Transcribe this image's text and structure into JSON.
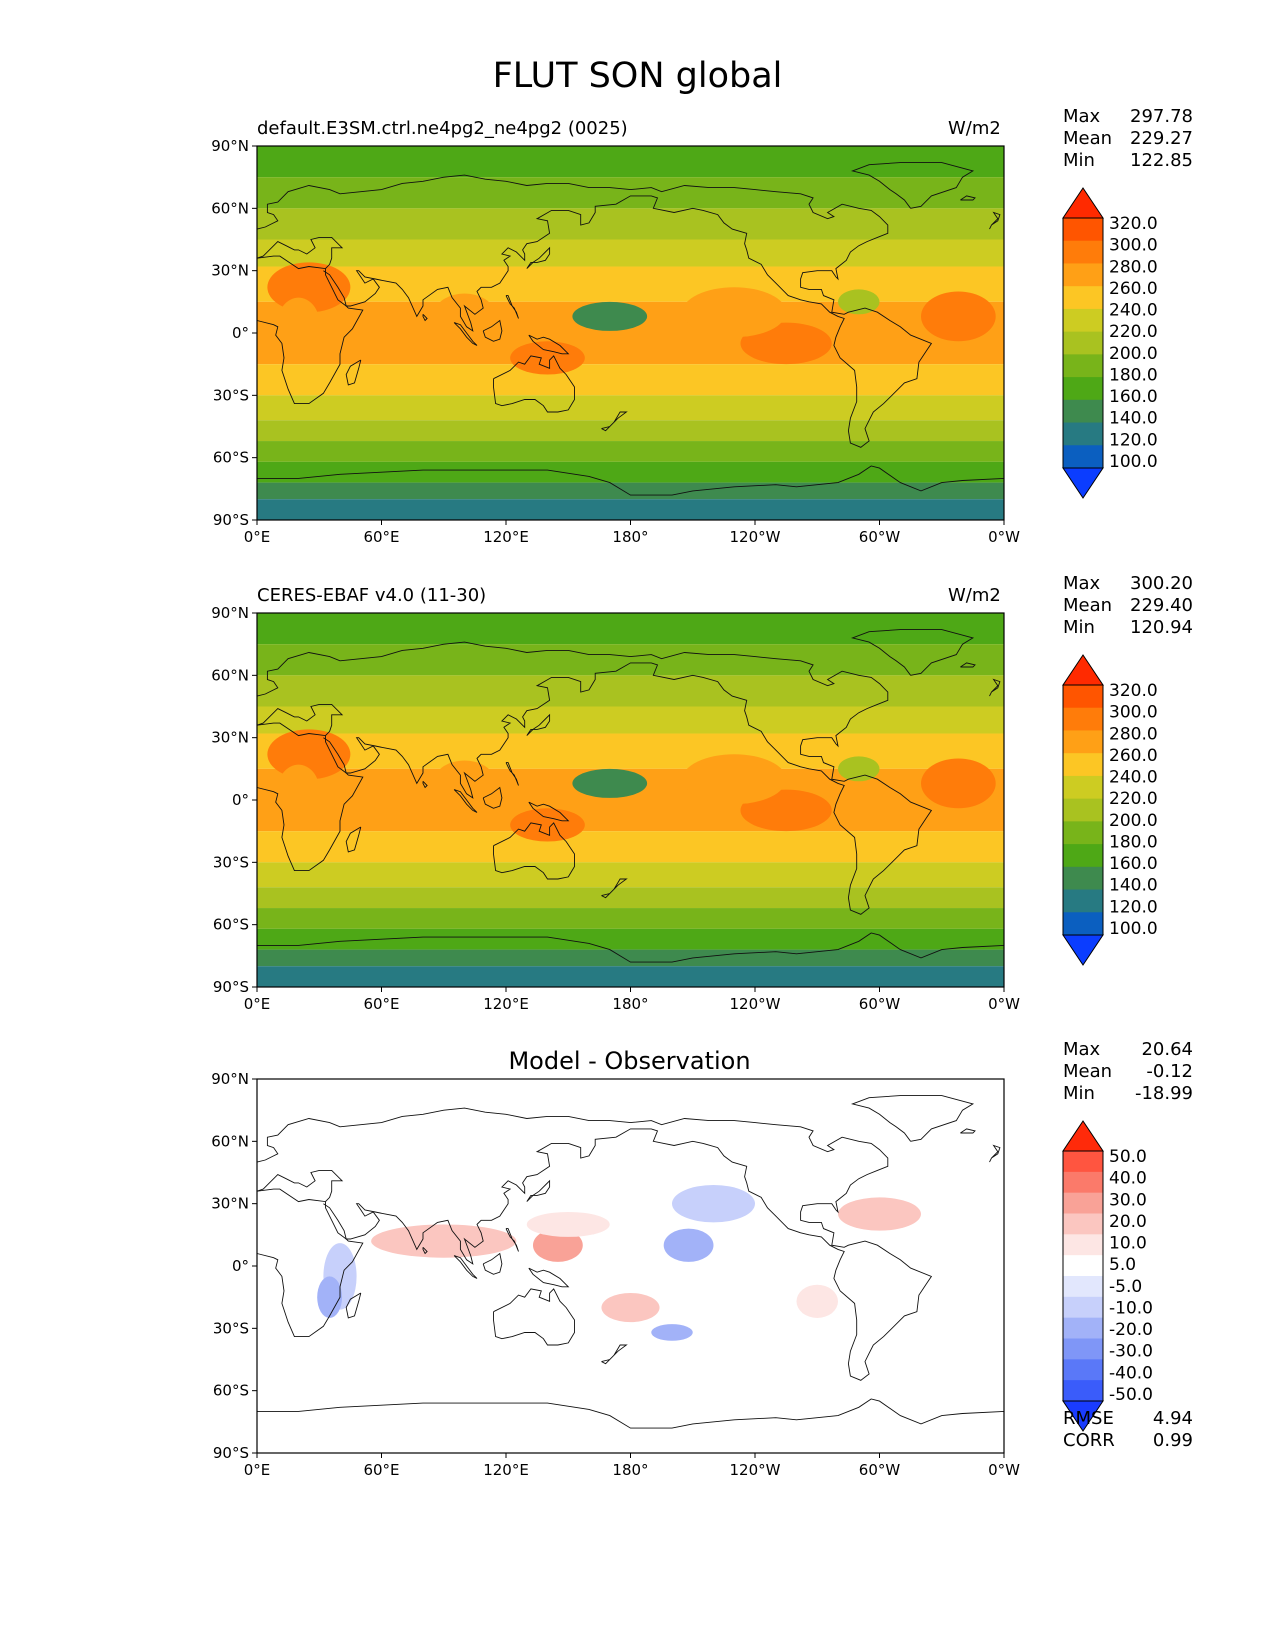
{
  "title": "FLUT SON global",
  "axes": {
    "lat_labels": [
      "90°N",
      "60°N",
      "30°N",
      "0°",
      "30°S",
      "60°S",
      "90°S"
    ],
    "lon_labels": [
      "0°E",
      "60°E",
      "120°E",
      "180°",
      "120°W",
      "60°W",
      "0°W"
    ]
  },
  "panels": [
    {
      "left_title": "default.E3SM.ctrl.ne4pg2_ne4pg2 (0025)",
      "right_title": "W/m2",
      "center_title": "",
      "stats": [
        {
          "label": "Max",
          "value": "297.78"
        },
        {
          "label": "Mean",
          "value": "229.27"
        },
        {
          "label": "Min",
          "value": "122.85"
        }
      ],
      "colorbar_labels": [
        "320.0",
        "300.0",
        "280.0",
        "260.0",
        "240.0",
        "220.0",
        "200.0",
        "180.0",
        "160.0",
        "140.0",
        "120.0",
        "100.0"
      ]
    },
    {
      "left_title": "CERES-EBAF v4.0 (11-30)",
      "right_title": "W/m2",
      "center_title": "",
      "stats": [
        {
          "label": "Max",
          "value": "300.20"
        },
        {
          "label": "Mean",
          "value": "229.40"
        },
        {
          "label": "Min",
          "value": "120.94"
        }
      ],
      "colorbar_labels": [
        "320.0",
        "300.0",
        "280.0",
        "260.0",
        "240.0",
        "220.0",
        "200.0",
        "180.0",
        "160.0",
        "140.0",
        "120.0",
        "100.0"
      ]
    },
    {
      "left_title": "",
      "right_title": "",
      "center_title": "Model - Observation",
      "stats": [
        {
          "label": "Max",
          "value": "20.64"
        },
        {
          "label": "Mean",
          "value": "-0.12"
        },
        {
          "label": "Min",
          "value": "-18.99"
        }
      ],
      "colorbar_labels": [
        "50.0",
        "40.0",
        "30.0",
        "20.0",
        "10.0",
        "5.0",
        "-5.0",
        "-10.0",
        "-20.0",
        "-30.0",
        "-40.0",
        "-50.0"
      ],
      "metrics": [
        {
          "label": "RMSE",
          "value": "4.94"
        },
        {
          "label": "CORR",
          "value": "0.99"
        }
      ]
    }
  ],
  "colors": {
    "abs_scale": [
      "#ff2a00",
      "#ff5500",
      "#ff7c0a",
      "#ffa016",
      "#fcc624",
      "#cdcc22",
      "#a9c220",
      "#78b41a",
      "#4ea816",
      "#3e8a4e",
      "#277a82",
      "#0b5fc0",
      "#0b3dff"
    ],
    "diff_scale": [
      "#ff2a0a",
      "#ff5540",
      "#fb7a6a",
      "#f9a297",
      "#fbc6c0",
      "#fde6e4",
      "#ffffff",
      "#e2e7fd",
      "#c7d0fb",
      "#a2b2f8",
      "#7f96f7",
      "#5a78f8",
      "#3a5cfa",
      "#1a3cfe"
    ],
    "land_outline": "#111111"
  }
}
